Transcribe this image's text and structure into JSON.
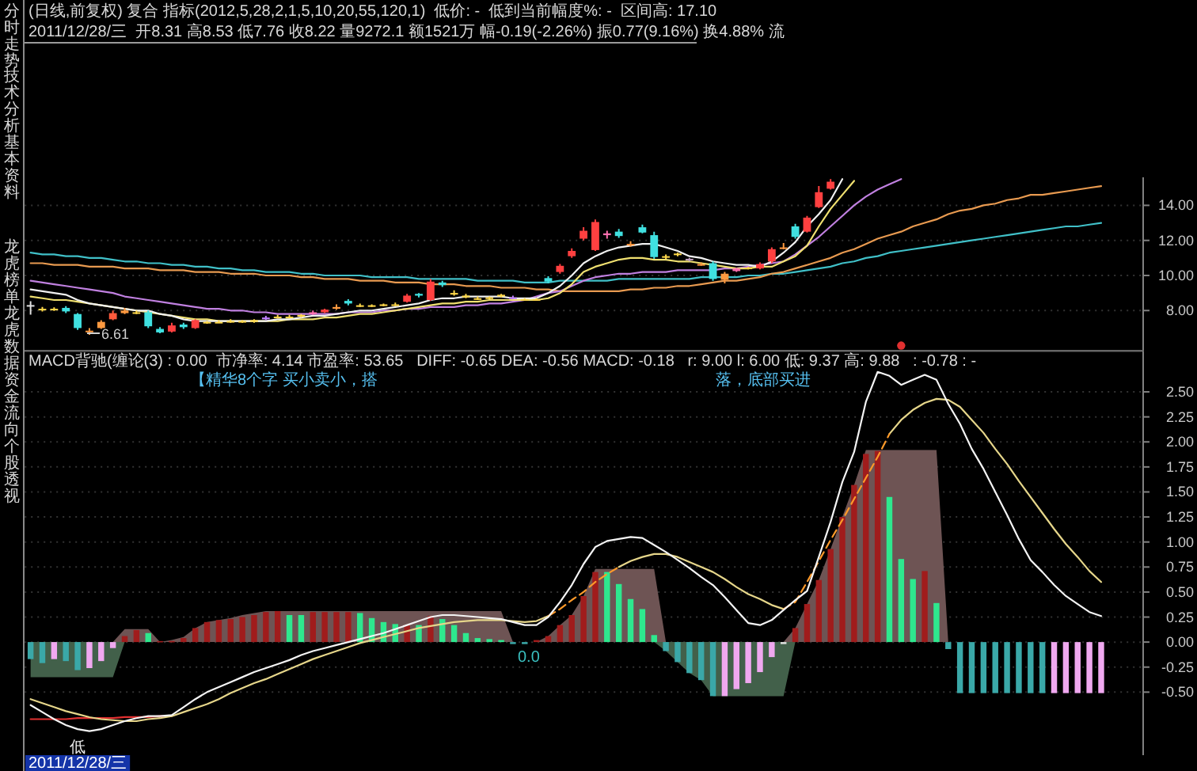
{
  "chart_data": [
    {
      "type": "candlestick",
      "title": "(日线,前复权) 复合 指标(2012,5,28,2,1,5,10,20,55,120,1)  低价: -  低到当前幅度%: -  区间高: 17.10",
      "subtitle": "2011/12/28/三  开8.31 高8.53 低7.76 收8.22 量9272.1 额1521万 幅-0.19(-2.26%) 振0.77(9.16%) 换4.88% 流",
      "categories": [
        null,
        null,
        null,
        null,
        null,
        null,
        null,
        null,
        null,
        null,
        null,
        null,
        null,
        null,
        null,
        null,
        null,
        null,
        null,
        null,
        null,
        null,
        null,
        null,
        null,
        null,
        null,
        null,
        null,
        null,
        null,
        null,
        null,
        null,
        null,
        null,
        null,
        null,
        null,
        null,
        null,
        null,
        null,
        null,
        null,
        null,
        null,
        null,
        null,
        null,
        null,
        null,
        null,
        null,
        null,
        null,
        null,
        null,
        null,
        null,
        null,
        null,
        null,
        null,
        null,
        null,
        null,
        null,
        null,
        null,
        null,
        null,
        null,
        null,
        null,
        null,
        null,
        null,
        null,
        null,
        null,
        null,
        null,
        null,
        null,
        null,
        null,
        null,
        null,
        null,
        null,
        null
      ],
      "ohlc": [
        [
          8.31,
          8.53,
          7.76,
          8.22
        ],
        [
          8.05,
          8.2,
          7.95,
          8.1
        ],
        [
          8.1,
          8.18,
          7.98,
          8.05
        ],
        [
          8.15,
          8.25,
          7.85,
          7.95
        ],
        [
          7.8,
          7.85,
          6.9,
          7.0
        ],
        [
          6.85,
          7.0,
          6.61,
          6.8
        ],
        [
          7.0,
          7.45,
          6.95,
          7.35
        ],
        [
          7.5,
          8.0,
          7.45,
          7.85
        ],
        [
          7.85,
          8.15,
          7.8,
          8.0
        ],
        [
          7.9,
          8.0,
          7.8,
          7.85
        ],
        [
          7.9,
          8.0,
          7.0,
          7.1
        ],
        [
          6.95,
          7.05,
          6.7,
          6.75
        ],
        [
          6.8,
          7.3,
          6.75,
          7.15
        ],
        [
          7.2,
          7.3,
          6.95,
          7.05
        ],
        [
          7.0,
          7.5,
          6.95,
          7.45
        ],
        [
          7.3,
          7.4,
          7.25,
          7.35
        ],
        [
          7.35,
          7.45,
          7.3,
          7.35
        ],
        [
          7.35,
          7.5,
          7.3,
          7.4
        ],
        [
          7.4,
          7.45,
          7.3,
          7.35
        ],
        [
          7.35,
          7.5,
          7.3,
          7.45
        ],
        [
          7.5,
          7.7,
          7.45,
          7.6
        ],
        [
          7.6,
          7.75,
          7.55,
          7.65
        ],
        [
          7.65,
          7.75,
          7.6,
          7.65
        ],
        [
          7.65,
          7.8,
          7.6,
          7.75
        ],
        [
          7.8,
          8.0,
          7.75,
          7.9
        ],
        [
          7.9,
          8.1,
          7.85,
          8.05
        ],
        [
          8.1,
          8.35,
          8.05,
          8.2
        ],
        [
          8.55,
          8.65,
          8.3,
          8.4
        ],
        [
          8.3,
          8.4,
          8.2,
          8.25
        ],
        [
          8.25,
          8.35,
          8.2,
          8.3
        ],
        [
          8.3,
          8.4,
          8.25,
          8.35
        ],
        [
          8.3,
          8.45,
          8.25,
          8.35
        ],
        [
          8.5,
          8.95,
          8.45,
          8.85
        ],
        [
          8.95,
          9.0,
          8.75,
          8.85
        ],
        [
          8.6,
          9.8,
          8.55,
          9.65
        ],
        [
          9.6,
          9.7,
          9.35,
          9.45
        ],
        [
          9.0,
          9.15,
          8.85,
          9.0
        ],
        [
          8.85,
          8.95,
          8.7,
          8.75
        ],
        [
          8.7,
          8.8,
          8.6,
          8.65
        ],
        [
          8.7,
          8.8,
          8.65,
          8.75
        ],
        [
          8.8,
          8.95,
          8.75,
          8.9
        ],
        [
          8.75,
          8.85,
          8.65,
          8.7
        ],
        [
          8.6,
          8.7,
          8.55,
          8.65
        ],
        [
          8.6,
          8.7,
          8.55,
          8.65
        ],
        [
          9.85,
          9.95,
          9.55,
          9.65
        ],
        [
          10.2,
          10.65,
          10.1,
          10.55
        ],
        [
          11.1,
          11.55,
          11.0,
          11.4
        ],
        [
          12.1,
          12.75,
          12.0,
          12.55
        ],
        [
          11.45,
          13.2,
          11.4,
          13.05
        ],
        [
          12.4,
          12.55,
          12.1,
          12.3
        ],
        [
          12.5,
          12.65,
          12.15,
          12.25
        ],
        [
          11.8,
          11.95,
          11.65,
          11.75
        ],
        [
          12.75,
          12.9,
          12.4,
          12.45
        ],
        [
          12.3,
          12.5,
          10.95,
          11.05
        ],
        [
          11.1,
          11.2,
          10.95,
          11.05
        ],
        [
          11.2,
          11.3,
          11.1,
          11.25
        ],
        [
          10.95,
          11.0,
          10.8,
          10.9
        ],
        [
          10.65,
          10.75,
          10.55,
          10.6
        ],
        [
          10.7,
          10.8,
          9.7,
          9.8
        ],
        [
          9.75,
          10.2,
          9.55,
          10.1
        ],
        [
          10.25,
          10.45,
          10.2,
          10.4
        ],
        [
          10.4,
          10.5,
          10.35,
          10.45
        ],
        [
          10.4,
          10.75,
          10.35,
          10.65
        ],
        [
          10.8,
          11.6,
          10.7,
          11.5
        ],
        [
          11.55,
          11.85,
          11.5,
          11.6
        ],
        [
          12.8,
          12.95,
          12.1,
          12.2
        ],
        [
          12.5,
          13.4,
          12.45,
          13.3
        ],
        [
          13.9,
          15.1,
          13.85,
          14.75
        ],
        [
          14.95,
          15.5,
          14.9,
          15.35
        ],
        null,
        null,
        null,
        null,
        null,
        null,
        null,
        null,
        null,
        null,
        null,
        null,
        null,
        null,
        null,
        null,
        null,
        null,
        null,
        null,
        null,
        null,
        null
      ],
      "colors": [
        "#e0e0e0",
        "#ffd84a",
        "#ffd84a",
        "#40e0e0",
        "#40e0e0",
        "#ff9a40",
        "#ff9a40",
        "#ff5a3c",
        "#ff9a40",
        "#ffd84a",
        "#40e0e0",
        "#40e0e0",
        "#ff4040",
        "#40e0e0",
        "#ff4040",
        "#ffd84a",
        "#ffd84a",
        "#ffd84a",
        "#ffd84a",
        "#ffd84a",
        "#c080ff",
        "#ffd84a",
        "#ffd84a",
        "#ffd84a",
        "#ff70b0",
        "#ff4040",
        "#ff9a40",
        "#40e0e0",
        "#ffd84a",
        "#ffd84a",
        "#ffd84a",
        "#ffd84a",
        "#ff4040",
        "#40e0e0",
        "#ff4040",
        "#40e0e0",
        "#ffd84a",
        "#ffd84a",
        "#ffd84a",
        "#ffd84a",
        "#ffd84a",
        "#c080ff",
        "#ffd84a",
        "#ffd84a",
        "#40e0e0",
        "#ff4040",
        "#ff4040",
        "#ff4040",
        "#ff4040",
        "#ff70b0",
        "#40e0e0",
        "#ff9a40",
        "#40e0e0",
        "#40e0e0",
        "#ffd84a",
        "#ffd84a",
        "#c0a0c0",
        "#ff9a40",
        "#40e0e0",
        "#ff9a40",
        "#ff70b0",
        "#ffd84a",
        "#ff4040",
        "#ff4040",
        "#ff9a40",
        "#40e0e0",
        "#ff4040",
        "#ff4040",
        "#ff4040",
        null,
        null,
        null,
        null,
        null,
        null,
        null,
        null,
        null,
        null,
        null,
        null,
        null,
        null,
        null,
        null,
        null,
        null,
        null,
        null,
        null,
        null,
        null
      ],
      "series": [
        {
          "type": "line",
          "color": "#40c0c8",
          "values": [
            11.3,
            11.2,
            11.2,
            11.1,
            11.1,
            11.0,
            11.0,
            10.9,
            10.8,
            10.8,
            10.7,
            10.7,
            10.6,
            10.6,
            10.5,
            10.5,
            10.4,
            10.4,
            10.3,
            10.3,
            10.2,
            10.2,
            10.2,
            10.1,
            10.1,
            10.0,
            10.0,
            10.0,
            10.0,
            9.9,
            9.9,
            9.9,
            9.9,
            9.8,
            9.8,
            9.8,
            9.8,
            9.8,
            9.7,
            9.7,
            9.7,
            9.7,
            9.6,
            9.6,
            9.6,
            9.7,
            9.7,
            9.7,
            9.7,
            9.7,
            9.8,
            9.8,
            9.8,
            9.8,
            9.8,
            9.8,
            9.8,
            9.9,
            9.9,
            9.9,
            9.9,
            10.0,
            10.0,
            10.1,
            10.1,
            10.2,
            10.3,
            10.4,
            10.5,
            10.7,
            10.8,
            11.0,
            11.1,
            11.3,
            11.4,
            11.5,
            11.6,
            11.7,
            11.8,
            11.9,
            12.0,
            12.1,
            12.2,
            12.3,
            12.4,
            12.5,
            12.6,
            12.7,
            12.8,
            12.8,
            12.9,
            13.0
          ]
        },
        {
          "type": "line",
          "color": "#e89a50",
          "values": [
            10.7,
            10.7,
            10.6,
            10.6,
            10.6,
            10.5,
            10.5,
            10.5,
            10.4,
            10.4,
            10.4,
            10.3,
            10.3,
            10.3,
            10.2,
            10.2,
            10.2,
            10.1,
            10.1,
            10.1,
            10.0,
            10.0,
            10.0,
            9.9,
            9.9,
            9.8,
            9.8,
            9.8,
            9.7,
            9.7,
            9.7,
            9.6,
            9.6,
            9.6,
            9.5,
            9.5,
            9.5,
            9.4,
            9.4,
            9.4,
            9.3,
            9.3,
            9.3,
            9.2,
            9.2,
            9.1,
            9.1,
            9.1,
            9.1,
            9.1,
            9.1,
            9.2,
            9.2,
            9.3,
            9.3,
            9.4,
            9.4,
            9.5,
            9.6,
            9.7,
            9.7,
            9.8,
            9.9,
            10.1,
            10.2,
            10.4,
            10.6,
            10.8,
            11.0,
            11.3,
            11.5,
            11.8,
            12.1,
            12.3,
            12.5,
            12.8,
            13.0,
            13.2,
            13.5,
            13.7,
            13.8,
            14.0,
            14.1,
            14.3,
            14.4,
            14.6,
            14.6,
            14.7,
            14.8,
            14.9,
            15.0,
            15.1
          ]
        },
        {
          "type": "line",
          "color": "#c080e0",
          "values": [
            9.7,
            9.6,
            9.5,
            9.4,
            9.3,
            9.2,
            9.1,
            9.0,
            8.8,
            8.7,
            8.6,
            8.5,
            8.4,
            8.3,
            8.2,
            8.1,
            8.1,
            8.0,
            8.0,
            7.9,
            7.9,
            7.8,
            7.8,
            7.8,
            7.8,
            7.8,
            7.8,
            7.9,
            7.9,
            7.9,
            8.0,
            8.0,
            8.1,
            8.1,
            8.2,
            8.2,
            8.2,
            8.3,
            8.3,
            8.4,
            8.4,
            8.5,
            8.6,
            8.8,
            9.0,
            9.1,
            9.4,
            9.7,
            9.9,
            10.0,
            10.1,
            10.1,
            10.2,
            10.2,
            10.2,
            10.3,
            10.3,
            10.3,
            10.3,
            10.4,
            10.4,
            10.5,
            10.6,
            10.7,
            10.8,
            11.2,
            11.7,
            12.2,
            12.8,
            13.4,
            14.0,
            14.5,
            14.9,
            15.2,
            15.5,
            null,
            null,
            null,
            null,
            null,
            null,
            null,
            null,
            null,
            null,
            null,
            null,
            null,
            null,
            null,
            null,
            null
          ]
        },
        {
          "type": "line",
          "color": "#f0e070",
          "values": [
            8.8,
            8.7,
            8.6,
            8.6,
            8.5,
            8.4,
            8.3,
            8.2,
            8.1,
            8.0,
            7.9,
            7.8,
            7.7,
            7.6,
            7.5,
            7.5,
            7.4,
            7.4,
            7.4,
            7.4,
            7.4,
            7.4,
            7.5,
            7.5,
            7.5,
            7.6,
            7.6,
            7.7,
            7.8,
            7.8,
            7.9,
            8.0,
            8.1,
            8.2,
            8.3,
            8.4,
            8.4,
            8.5,
            8.5,
            8.6,
            8.6,
            8.6,
            8.6,
            8.6,
            8.7,
            9.0,
            9.5,
            10.2,
            10.5,
            10.7,
            10.9,
            11.0,
            11.0,
            10.9,
            10.9,
            10.8,
            10.8,
            10.7,
            10.6,
            10.5,
            10.4,
            10.4,
            10.5,
            10.5,
            10.8,
            11.1,
            11.7,
            12.8,
            13.8,
            14.6,
            15.4,
            null,
            null,
            null,
            null,
            null,
            null,
            null,
            null,
            null,
            null,
            null,
            null,
            null,
            null,
            null,
            null,
            null,
            null,
            null,
            null,
            null
          ]
        },
        {
          "type": "line",
          "color": "#f0f0f0",
          "values": [
            9.2,
            9.1,
            9.0,
            8.9,
            8.6,
            8.4,
            8.3,
            8.2,
            8.1,
            8.0,
            8.0,
            7.8,
            7.7,
            7.5,
            7.4,
            7.4,
            7.4,
            7.4,
            7.4,
            7.4,
            7.4,
            7.5,
            7.5,
            7.6,
            7.7,
            7.7,
            7.8,
            7.9,
            8.0,
            8.0,
            8.1,
            8.2,
            8.3,
            8.4,
            8.6,
            8.7,
            8.7,
            8.8,
            8.8,
            8.8,
            8.8,
            8.7,
            8.7,
            8.7,
            9.0,
            9.4,
            10.0,
            10.7,
            11.1,
            11.4,
            11.6,
            11.7,
            11.8,
            11.8,
            11.6,
            11.4,
            11.1,
            11.0,
            10.8,
            10.7,
            10.6,
            10.6,
            10.5,
            10.8,
            11.3,
            11.9,
            12.8,
            13.5,
            14.3,
            15.5,
            null,
            null,
            null,
            null,
            null,
            null,
            null,
            null,
            null,
            null,
            null,
            null,
            null,
            null,
            null,
            null,
            null,
            null,
            null,
            null,
            null,
            null
          ]
        },
        {
          "type": "scatter",
          "color": "#e03030",
          "marker": "circle",
          "values": [
            null,
            null,
            null,
            null,
            null,
            null,
            null,
            null,
            null,
            null,
            null,
            null,
            null,
            null,
            null,
            null,
            null,
            null,
            null,
            null,
            null,
            null,
            null,
            null,
            null,
            null,
            null,
            null,
            null,
            null,
            null,
            null,
            null,
            null,
            null,
            null,
            null,
            null,
            null,
            null,
            null,
            null,
            null,
            null,
            null,
            null,
            null,
            null,
            null,
            null,
            null,
            null,
            null,
            null,
            null,
            null,
            null,
            null,
            null,
            null,
            null,
            null,
            null,
            null,
            null,
            null,
            null,
            null,
            null,
            null,
            null,
            null,
            null,
            null,
            6.0,
            null,
            null,
            null,
            null,
            null,
            null,
            null,
            null,
            null,
            null,
            null,
            null,
            null,
            null,
            null,
            null,
            null
          ]
        }
      ],
      "ylim": [
        5.7,
        15.6
      ],
      "yticks": [
        {
          "value": 8,
          "label": "8.00"
        },
        {
          "value": 10,
          "label": "10.00"
        },
        {
          "value": 12,
          "label": "12.00"
        },
        {
          "value": 14,
          "label": "14.00"
        }
      ],
      "grid": "y",
      "annotations": [
        "6.61"
      ]
    },
    {
      "type": "bar",
      "title": "MACD背驰(缠论(3) : 0.00  市净率: 4.14 市盈率: 53.65   DIFF: -0.65 DEA: -0.56 MACD: -0.18   r: 9.00 l: 6.00 低: 9.37 高: 9.88   : -0.78 : -",
      "categories": [
        null,
        null,
        null,
        null,
        null,
        null,
        null,
        null,
        null,
        null,
        null,
        null,
        null,
        null,
        null,
        null,
        null,
        null,
        null,
        null,
        null,
        null,
        null,
        null,
        null,
        null,
        null,
        null,
        null,
        null,
        null,
        null,
        null,
        null,
        null,
        null,
        null,
        null,
        null,
        null,
        null,
        null,
        null,
        null,
        null,
        null,
        null,
        null,
        null,
        null,
        null,
        null,
        null,
        null,
        null,
        null,
        null,
        null,
        null,
        null,
        null,
        null,
        null,
        null,
        null,
        null,
        null,
        null,
        null,
        null,
        null,
        null,
        null,
        null,
        null,
        null,
        null,
        null,
        null,
        null,
        null,
        null,
        null,
        null,
        null,
        null,
        null,
        null,
        null,
        null,
        null,
        null
      ],
      "series": [
        {
          "type": "area",
          "color": "#6e5454",
          "values": [
            null,
            null,
            null,
            null,
            null,
            null,
            null,
            0,
            0.13,
            0.13,
            0.13,
            0,
            0.02,
            0.05,
            0.14,
            0.2,
            0.22,
            0.24,
            0.27,
            0.29,
            0.31,
            0.31,
            0.31,
            0.31,
            0.31,
            0.31,
            0.31,
            0.31,
            0.31,
            0.31,
            0.31,
            0.31,
            0.31,
            0.31,
            0.31,
            0.31,
            0.31,
            0.31,
            0.31,
            0.31,
            0.31,
            0,
            null,
            0,
            0.06,
            0.17,
            0.27,
            0.46,
            0.73,
            0.73,
            0.73,
            0.73,
            0.73,
            0.73,
            0,
            null,
            null,
            null,
            null,
            null,
            null,
            null,
            null,
            null,
            0,
            0.14,
            0.38,
            0.62,
            0.93,
            1.25,
            1.57,
            1.92,
            1.92,
            1.92,
            1.92,
            1.92,
            1.92,
            1.92,
            0,
            null,
            null,
            null,
            null,
            null,
            null,
            null,
            null,
            null,
            null,
            null,
            null,
            null
          ]
        },
        {
          "type": "area",
          "color": "#42604a",
          "values": [
            -0.35,
            -0.35,
            -0.35,
            -0.35,
            -0.35,
            -0.35,
            -0.35,
            -0.35,
            0,
            null,
            null,
            null,
            null,
            null,
            null,
            null,
            null,
            null,
            null,
            null,
            null,
            null,
            null,
            null,
            null,
            null,
            null,
            null,
            null,
            null,
            null,
            null,
            null,
            null,
            null,
            null,
            null,
            null,
            null,
            null,
            null,
            null,
            null,
            null,
            null,
            null,
            null,
            null,
            null,
            null,
            null,
            null,
            null,
            0,
            -0.09,
            -0.2,
            -0.31,
            -0.38,
            -0.54,
            -0.54,
            -0.54,
            -0.54,
            -0.54,
            -0.54,
            -0.54,
            0,
            null,
            null,
            null,
            null,
            null,
            null,
            null,
            null,
            null,
            null,
            null,
            null,
            null,
            null,
            null,
            null,
            null,
            null,
            null,
            null,
            null,
            null,
            null,
            null,
            null,
            null
          ]
        },
        {
          "type": "bar",
          "values": [
            -0.17,
            -0.21,
            -0.17,
            -0.19,
            -0.28,
            -0.26,
            -0.19,
            -0.06,
            0.06,
            0.12,
            0.09,
            0.01,
            0.01,
            0.04,
            0.14,
            0.2,
            0.22,
            0.23,
            0.25,
            0.27,
            0.3,
            0.31,
            0.27,
            0.27,
            0.3,
            0.3,
            0.3,
            0.3,
            0.29,
            0.24,
            0.2,
            0.18,
            0.17,
            0.17,
            0.26,
            0.23,
            0.17,
            0.09,
            0.04,
            0.03,
            0.02,
            -0.02,
            -0.02,
            0.02,
            0.06,
            0.17,
            0.27,
            0.46,
            0.7,
            0.7,
            0.58,
            0.43,
            0.33,
            0.07,
            -0.09,
            -0.2,
            -0.31,
            -0.38,
            -0.54,
            -0.54,
            -0.47,
            -0.41,
            -0.3,
            -0.15,
            -0.02,
            0.14,
            0.38,
            0.62,
            0.93,
            1.25,
            1.57,
            1.88,
            1.91,
            1.45,
            0.83,
            0.63,
            0.71,
            0.39,
            -0.07,
            -0.51,
            -0.51,
            -0.51,
            -0.51,
            -0.51,
            -0.51,
            -0.51,
            -0.51,
            -0.51,
            -0.51,
            -0.51,
            -0.51,
            -0.51
          ],
          "colors": [
            "#3aa8a8",
            "#3aa8a8",
            "#f0a8f0",
            "#3aa8a8",
            "#3aa8a8",
            "#f0a8f0",
            "#f0a8f0",
            "#f0a8f0",
            "#a01c1c",
            "#a01c1c",
            "#2ee88e",
            "#a01c1c",
            "#a01c1c",
            "#a01c1c",
            "#a01c1c",
            "#a01c1c",
            "#a01c1c",
            "#a01c1c",
            "#a01c1c",
            "#a01c1c",
            "#a01c1c",
            "#a01c1c",
            "#2ee88e",
            "#2ee88e",
            "#a01c1c",
            "#a01c1c",
            "#a01c1c",
            "#a01c1c",
            "#2ee88e",
            "#2ee88e",
            "#2ee88e",
            "#2ee88e",
            "#a01c1c",
            "#2ee88e",
            "#a01c1c",
            "#2ee88e",
            "#2ee88e",
            "#2ee88e",
            "#2ee88e",
            "#2ee88e",
            "#2ee88e",
            "#3aa8a8",
            "#3aa8a8",
            "#a01c1c",
            "#a01c1c",
            "#a01c1c",
            "#a01c1c",
            "#a01c1c",
            "#a01c1c",
            "#2ee88e",
            "#2ee88e",
            "#2ee88e",
            "#2ee88e",
            "#2ee88e",
            "#3aa8a8",
            "#3aa8a8",
            "#3aa8a8",
            "#3aa8a8",
            "#3aa8a8",
            "#f0a8f0",
            "#f0a8f0",
            "#f0a8f0",
            "#f0a8f0",
            "#f0a8f0",
            "#e0e0e0",
            "#a01c1c",
            "#a01c1c",
            "#a01c1c",
            "#a01c1c",
            "#a01c1c",
            "#a01c1c",
            "#a01c1c",
            "#a01c1c",
            "#2ee88e",
            "#2ee88e",
            "#2ee88e",
            "#a01c1c",
            "#2ee88e",
            "#3aa8a8",
            "#3aa8a8",
            "#3aa8a8",
            "#3aa8a8",
            "#3aa8a8",
            "#3aa8a8",
            "#3aa8a8",
            "#3aa8a8",
            "#3aa8a8",
            "#f0a8f0",
            "#f0a8f0",
            "#f0a8f0",
            "#f0a8f0",
            "#f0a8f0"
          ]
        },
        {
          "type": "line",
          "color": "#e03030",
          "values": [
            -0.77,
            -0.77,
            -0.77,
            -0.77,
            -0.76,
            -0.76,
            -0.76,
            -0.76,
            -0.75,
            -0.75,
            -0.75,
            -0.74,
            -0.74,
            null,
            null,
            null,
            null,
            null,
            null,
            null,
            null,
            null,
            null,
            null,
            null,
            null,
            null,
            null,
            null,
            null,
            null,
            null,
            null,
            null,
            null,
            null,
            null,
            null,
            null,
            null,
            null,
            null,
            null,
            null,
            null,
            null,
            null,
            null,
            null,
            null,
            null,
            null,
            null,
            null,
            null,
            null,
            null,
            null,
            null,
            null,
            null,
            null,
            null,
            null,
            null,
            null,
            null,
            null,
            null,
            null,
            null,
            null,
            null,
            null,
            null,
            null,
            null,
            null,
            null,
            null,
            null,
            null,
            null,
            null,
            null,
            null,
            null,
            null,
            null,
            null,
            null,
            null
          ]
        },
        {
          "type": "line",
          "color": "#e6d68a",
          "values": [
            -0.57,
            -0.61,
            -0.65,
            -0.69,
            -0.72,
            -0.75,
            -0.77,
            -0.78,
            -0.79,
            -0.79,
            -0.77,
            -0.76,
            -0.74,
            -0.7,
            -0.66,
            -0.62,
            -0.57,
            -0.51,
            -0.46,
            -0.41,
            -0.37,
            -0.32,
            -0.27,
            -0.22,
            -0.17,
            -0.13,
            -0.09,
            -0.05,
            -0.01,
            0.02,
            0.05,
            0.08,
            0.11,
            0.14,
            0.16,
            0.18,
            0.2,
            0.21,
            0.22,
            0.22,
            0.22,
            0.21,
            0.2,
            0.21,
            0.26,
            null,
            null,
            null,
            null,
            null,
            0.75,
            0.81,
            0.85,
            0.88,
            0.88,
            0.85,
            0.8,
            0.75,
            0.7,
            0.63,
            0.55,
            0.48,
            0.43,
            0.37,
            0.33,
            null,
            null,
            null,
            null,
            null,
            null,
            null,
            null,
            2.08,
            2.22,
            2.32,
            2.39,
            2.43,
            2.42,
            2.35,
            2.22,
            2.09,
            1.93,
            1.78,
            1.61,
            1.45,
            1.29,
            1.13,
            0.98,
            0.85,
            0.71,
            0.6
          ]
        },
        {
          "type": "line",
          "color": "#ff9a2a",
          "line_style": "dashed",
          "values": [
            null,
            null,
            null,
            null,
            null,
            null,
            null,
            null,
            null,
            null,
            null,
            null,
            null,
            null,
            null,
            null,
            null,
            null,
            null,
            null,
            null,
            null,
            null,
            null,
            null,
            null,
            null,
            null,
            null,
            null,
            null,
            null,
            null,
            null,
            null,
            null,
            null,
            null,
            null,
            null,
            null,
            null,
            null,
            null,
            0.26,
            0.33,
            0.42,
            0.5,
            0.6,
            0.68,
            0.75,
            null,
            null,
            null,
            null,
            null,
            null,
            null,
            null,
            null,
            null,
            null,
            null,
            null,
            0.33,
            0.4,
            0.6,
            0.81,
            1.02,
            1.22,
            1.43,
            1.64,
            1.85,
            2.08,
            null,
            null,
            null,
            null,
            null,
            null,
            null,
            null,
            null,
            null,
            null,
            null,
            null,
            null,
            null,
            null,
            null,
            null
          ]
        },
        {
          "type": "line",
          "color": "#f4f4f4",
          "values": [
            -0.63,
            -0.7,
            -0.77,
            -0.83,
            -0.87,
            -0.89,
            -0.87,
            -0.83,
            -0.79,
            -0.76,
            -0.74,
            -0.74,
            -0.73,
            -0.65,
            -0.57,
            -0.5,
            -0.45,
            -0.4,
            -0.35,
            -0.3,
            -0.26,
            -0.22,
            -0.18,
            -0.13,
            -0.09,
            -0.06,
            -0.03,
            0.0,
            0.03,
            0.06,
            0.09,
            0.13,
            0.17,
            0.21,
            0.25,
            0.27,
            0.27,
            0.26,
            0.25,
            0.24,
            0.23,
            0.2,
            0.17,
            0.17,
            0.25,
            0.4,
            0.57,
            0.78,
            0.95,
            1.01,
            1.03,
            1.05,
            1.04,
            0.97,
            0.9,
            0.82,
            0.74,
            0.65,
            0.57,
            0.45,
            0.32,
            0.19,
            0.17,
            0.22,
            0.32,
            0.42,
            0.51,
            0.85,
            1.2,
            1.6,
            1.9,
            2.4,
            2.7,
            2.66,
            2.57,
            2.62,
            2.67,
            2.62,
            2.38,
            2.18,
            1.93,
            1.73,
            1.5,
            1.27,
            1.03,
            0.82,
            0.7,
            0.57,
            0.46,
            0.38,
            0.3,
            0.26
          ]
        }
      ],
      "ylim": [
        -1.13,
        2.91
      ],
      "yticks": [
        {
          "value": 2.5,
          "label": "2.50"
        },
        {
          "value": 2.25,
          "label": "2.25"
        },
        {
          "value": 2,
          "label": "2.00"
        },
        {
          "value": 1.75,
          "label": "1.75"
        },
        {
          "value": 1.5,
          "label": "1.50"
        },
        {
          "value": 1.25,
          "label": "1.25"
        },
        {
          "value": 1,
          "label": "1.00"
        },
        {
          "value": 0.75,
          "label": "0.75"
        },
        {
          "value": 0.5,
          "label": "0.50"
        },
        {
          "value": 0.25,
          "label": "0.25"
        },
        {
          "value": 0,
          "label": "0.00"
        },
        {
          "value": -0.25,
          "label": "-0.25"
        },
        {
          "value": -0.5,
          "label": "-0.50"
        }
      ],
      "grid": "y",
      "annotations": [
        "【精华8个字 买小卖小，搭",
        "落，底部买进",
        "0.0",
        "低",
        "2011/12/28/三"
      ]
    },
    {
      "type": "other",
      "annotations": [
        "分时走势",
        "技术分析",
        "基本资料",
        "龙虎榜单",
        "龙虎数据",
        "资金流向",
        "个股透视"
      ]
    }
  ]
}
